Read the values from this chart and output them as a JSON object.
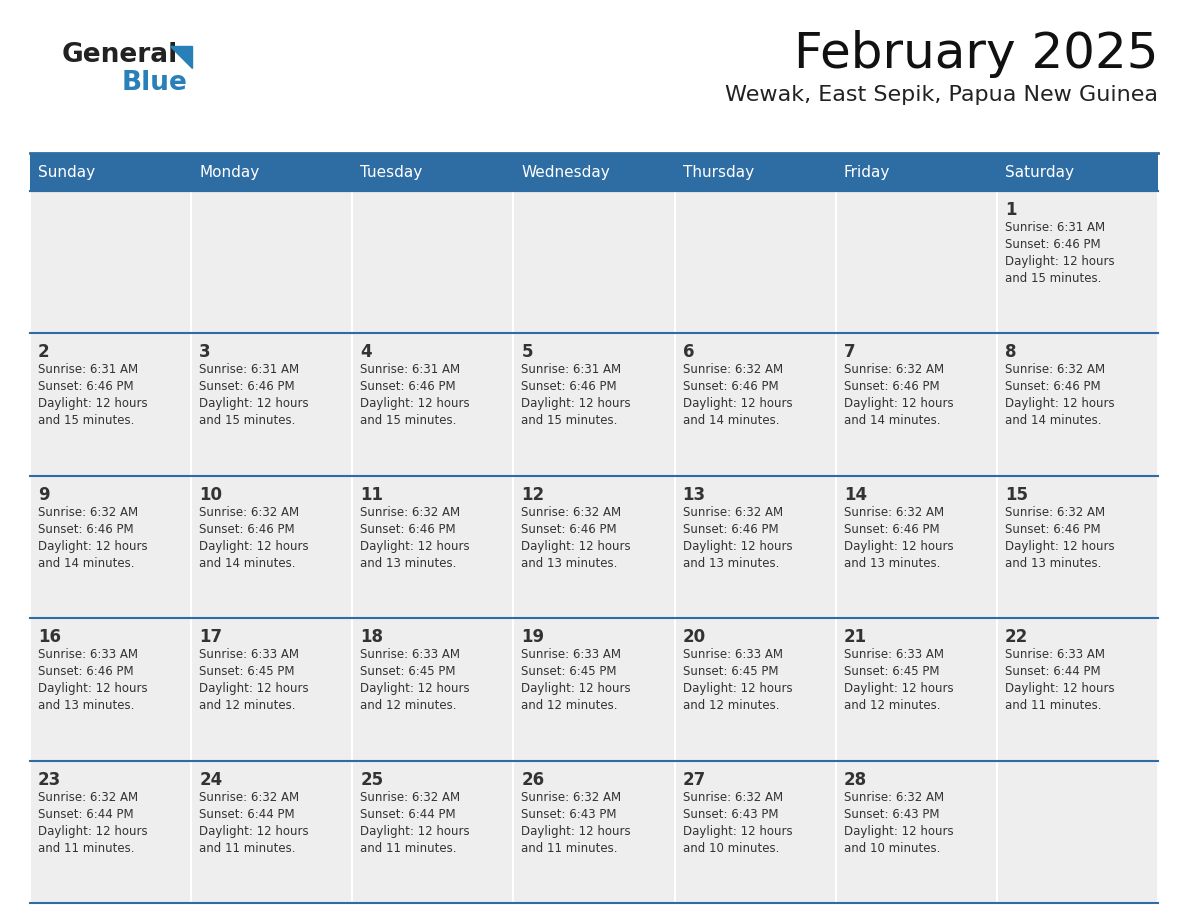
{
  "title": "February 2025",
  "subtitle": "Wewak, East Sepik, Papua New Guinea",
  "header_bg": "#2e6da4",
  "header_text_color": "#ffffff",
  "cell_bg": "#eeeeee",
  "border_color": "#2e6da4",
  "text_color": "#333333",
  "days_of_week": [
    "Sunday",
    "Monday",
    "Tuesday",
    "Wednesday",
    "Thursday",
    "Friday",
    "Saturday"
  ],
  "calendar_data": [
    [
      null,
      null,
      null,
      null,
      null,
      null,
      {
        "day": 1,
        "sunrise": "6:31 AM",
        "sunset": "6:46 PM",
        "daylight": "12 hours and 15 minutes."
      }
    ],
    [
      {
        "day": 2,
        "sunrise": "6:31 AM",
        "sunset": "6:46 PM",
        "daylight": "12 hours and 15 minutes."
      },
      {
        "day": 3,
        "sunrise": "6:31 AM",
        "sunset": "6:46 PM",
        "daylight": "12 hours and 15 minutes."
      },
      {
        "day": 4,
        "sunrise": "6:31 AM",
        "sunset": "6:46 PM",
        "daylight": "12 hours and 15 minutes."
      },
      {
        "day": 5,
        "sunrise": "6:31 AM",
        "sunset": "6:46 PM",
        "daylight": "12 hours and 15 minutes."
      },
      {
        "day": 6,
        "sunrise": "6:32 AM",
        "sunset": "6:46 PM",
        "daylight": "12 hours and 14 minutes."
      },
      {
        "day": 7,
        "sunrise": "6:32 AM",
        "sunset": "6:46 PM",
        "daylight": "12 hours and 14 minutes."
      },
      {
        "day": 8,
        "sunrise": "6:32 AM",
        "sunset": "6:46 PM",
        "daylight": "12 hours and 14 minutes."
      }
    ],
    [
      {
        "day": 9,
        "sunrise": "6:32 AM",
        "sunset": "6:46 PM",
        "daylight": "12 hours and 14 minutes."
      },
      {
        "day": 10,
        "sunrise": "6:32 AM",
        "sunset": "6:46 PM",
        "daylight": "12 hours and 14 minutes."
      },
      {
        "day": 11,
        "sunrise": "6:32 AM",
        "sunset": "6:46 PM",
        "daylight": "12 hours and 13 minutes."
      },
      {
        "day": 12,
        "sunrise": "6:32 AM",
        "sunset": "6:46 PM",
        "daylight": "12 hours and 13 minutes."
      },
      {
        "day": 13,
        "sunrise": "6:32 AM",
        "sunset": "6:46 PM",
        "daylight": "12 hours and 13 minutes."
      },
      {
        "day": 14,
        "sunrise": "6:32 AM",
        "sunset": "6:46 PM",
        "daylight": "12 hours and 13 minutes."
      },
      {
        "day": 15,
        "sunrise": "6:32 AM",
        "sunset": "6:46 PM",
        "daylight": "12 hours and 13 minutes."
      }
    ],
    [
      {
        "day": 16,
        "sunrise": "6:33 AM",
        "sunset": "6:46 PM",
        "daylight": "12 hours and 13 minutes."
      },
      {
        "day": 17,
        "sunrise": "6:33 AM",
        "sunset": "6:45 PM",
        "daylight": "12 hours and 12 minutes."
      },
      {
        "day": 18,
        "sunrise": "6:33 AM",
        "sunset": "6:45 PM",
        "daylight": "12 hours and 12 minutes."
      },
      {
        "day": 19,
        "sunrise": "6:33 AM",
        "sunset": "6:45 PM",
        "daylight": "12 hours and 12 minutes."
      },
      {
        "day": 20,
        "sunrise": "6:33 AM",
        "sunset": "6:45 PM",
        "daylight": "12 hours and 12 minutes."
      },
      {
        "day": 21,
        "sunrise": "6:33 AM",
        "sunset": "6:45 PM",
        "daylight": "12 hours and 12 minutes."
      },
      {
        "day": 22,
        "sunrise": "6:33 AM",
        "sunset": "6:44 PM",
        "daylight": "12 hours and 11 minutes."
      }
    ],
    [
      {
        "day": 23,
        "sunrise": "6:32 AM",
        "sunset": "6:44 PM",
        "daylight": "12 hours and 11 minutes."
      },
      {
        "day": 24,
        "sunrise": "6:32 AM",
        "sunset": "6:44 PM",
        "daylight": "12 hours and 11 minutes."
      },
      {
        "day": 25,
        "sunrise": "6:32 AM",
        "sunset": "6:44 PM",
        "daylight": "12 hours and 11 minutes."
      },
      {
        "day": 26,
        "sunrise": "6:32 AM",
        "sunset": "6:43 PM",
        "daylight": "12 hours and 11 minutes."
      },
      {
        "day": 27,
        "sunrise": "6:32 AM",
        "sunset": "6:43 PM",
        "daylight": "12 hours and 10 minutes."
      },
      {
        "day": 28,
        "sunrise": "6:32 AM",
        "sunset": "6:43 PM",
        "daylight": "12 hours and 10 minutes."
      },
      null
    ]
  ],
  "accent_blue": "#2980b9",
  "logo_general_color": "#222222",
  "logo_blue_color": "#2980b9"
}
